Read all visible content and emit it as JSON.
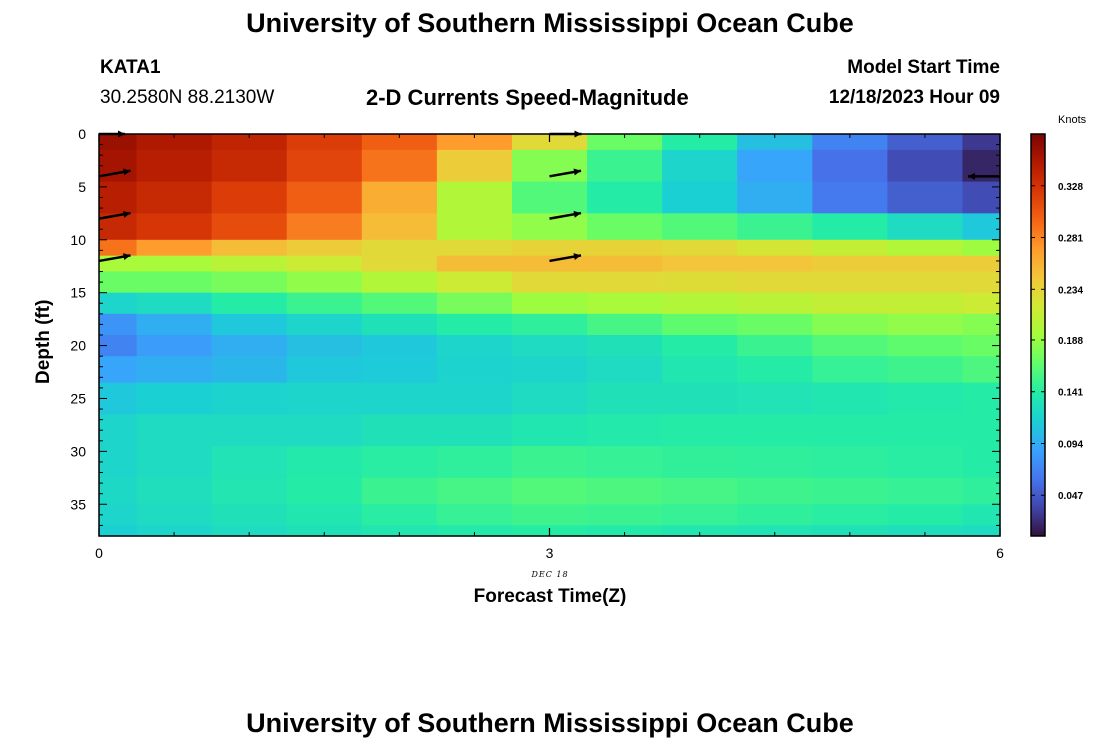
{
  "header": {
    "title": "University of Southern Mississippi Ocean Cube",
    "station": "KATA1",
    "coords": "30.2580N  88.2130W",
    "subtitle": "2-D Currents Speed-Magnitude",
    "model_start_label": "Model Start Time",
    "model_start_value": "12/18/2023 Hour 09"
  },
  "footer": {
    "title": "University of Southern Mississippi Ocean Cube"
  },
  "colors": {
    "arrow": "#000000",
    "colormap": [
      "#30123b",
      "#4145ab",
      "#4675ed",
      "#39a2fc",
      "#1bcfd4",
      "#24eca6",
      "#61fc6c",
      "#a4fc3b",
      "#d1e834",
      "#f3c63a",
      "#fe9b2d",
      "#f36315",
      "#d93806",
      "#b11901",
      "#7a0402"
    ]
  },
  "chart_data": {
    "type": "heatmap",
    "title": "2-D Currents Speed-Magnitude",
    "xlabel": "Forecast Time(Z)",
    "ylabel": "Depth (ft)",
    "date_label": "DEC 18",
    "x_ticks": [
      0,
      3,
      6
    ],
    "x_tick_labels": [
      "0",
      "3",
      "6"
    ],
    "y_ticks": [
      0,
      5,
      10,
      15,
      20,
      25,
      30,
      35
    ],
    "y_tick_labels": [
      "0",
      "5",
      "10",
      "15",
      "20",
      "25",
      "30",
      "35"
    ],
    "xlim": [
      0,
      6
    ],
    "ylim": [
      38,
      0
    ],
    "colorbar": {
      "label": "Knots",
      "range": [
        0.01,
        0.375
      ],
      "ticks": [
        0.047,
        0.094,
        0.141,
        0.188,
        0.234,
        0.281,
        0.328
      ],
      "tick_labels": [
        "0.047",
        "0.094",
        "0.141",
        "0.188",
        "0.234",
        "0.281",
        "0.328"
      ]
    },
    "time_columns_hours": [
      0,
      0.5,
      1,
      1.5,
      2,
      2.5,
      3,
      3.5,
      4,
      4.5,
      5,
      5.5,
      6
    ],
    "depth_levels_ft": [
      0,
      3,
      6,
      9,
      11,
      12,
      14,
      16,
      18,
      20,
      22,
      25,
      28,
      31,
      34,
      36,
      38
    ],
    "speed_knots": [
      [
        0.36,
        0.35,
        0.34,
        0.32,
        0.3,
        0.27,
        0.23,
        0.17,
        0.14,
        0.105,
        0.07,
        0.05,
        0.03
      ],
      [
        0.355,
        0.345,
        0.335,
        0.315,
        0.29,
        0.24,
        0.18,
        0.15,
        0.12,
        0.09,
        0.06,
        0.04,
        0.02
      ],
      [
        0.345,
        0.335,
        0.32,
        0.3,
        0.26,
        0.2,
        0.16,
        0.14,
        0.115,
        0.095,
        0.065,
        0.05,
        0.04
      ],
      [
        0.335,
        0.325,
        0.31,
        0.285,
        0.25,
        0.2,
        0.185,
        0.17,
        0.16,
        0.15,
        0.14,
        0.125,
        0.11
      ],
      [
        0.29,
        0.27,
        0.25,
        0.24,
        0.23,
        0.23,
        0.235,
        0.235,
        0.23,
        0.22,
        0.21,
        0.2,
        0.19
      ],
      [
        0.195,
        0.195,
        0.205,
        0.215,
        0.23,
        0.25,
        0.25,
        0.25,
        0.245,
        0.245,
        0.24,
        0.24,
        0.24
      ],
      [
        0.17,
        0.17,
        0.175,
        0.185,
        0.2,
        0.215,
        0.23,
        0.23,
        0.228,
        0.23,
        0.23,
        0.23,
        0.23
      ],
      [
        0.12,
        0.125,
        0.14,
        0.15,
        0.16,
        0.175,
        0.19,
        0.195,
        0.2,
        0.205,
        0.21,
        0.21,
        0.215
      ],
      [
        0.08,
        0.095,
        0.11,
        0.12,
        0.13,
        0.14,
        0.145,
        0.155,
        0.165,
        0.17,
        0.18,
        0.185,
        0.18
      ],
      [
        0.07,
        0.085,
        0.095,
        0.105,
        0.11,
        0.12,
        0.125,
        0.13,
        0.14,
        0.15,
        0.16,
        0.165,
        0.17
      ],
      [
        0.09,
        0.095,
        0.1,
        0.11,
        0.112,
        0.118,
        0.12,
        0.125,
        0.135,
        0.14,
        0.148,
        0.152,
        0.158
      ],
      [
        0.11,
        0.115,
        0.118,
        0.12,
        0.12,
        0.12,
        0.125,
        0.13,
        0.13,
        0.132,
        0.135,
        0.138,
        0.14
      ],
      [
        0.12,
        0.125,
        0.125,
        0.125,
        0.13,
        0.13,
        0.135,
        0.138,
        0.14,
        0.14,
        0.14,
        0.14,
        0.14
      ],
      [
        0.12,
        0.125,
        0.132,
        0.138,
        0.142,
        0.145,
        0.15,
        0.148,
        0.146,
        0.145,
        0.144,
        0.142,
        0.14
      ],
      [
        0.122,
        0.128,
        0.134,
        0.14,
        0.15,
        0.155,
        0.16,
        0.158,
        0.155,
        0.152,
        0.15,
        0.148,
        0.145
      ],
      [
        0.12,
        0.125,
        0.13,
        0.135,
        0.142,
        0.148,
        0.152,
        0.15,
        0.148,
        0.145,
        0.142,
        0.14,
        0.135
      ],
      [
        0.115,
        0.12,
        0.125,
        0.13,
        0.135,
        0.138,
        0.14,
        0.138,
        0.135,
        0.132,
        0.13,
        0.128,
        0.125
      ]
    ],
    "vectors": [
      {
        "t": 0,
        "depth": 0,
        "direction": "east",
        "length": "short"
      },
      {
        "t": 0,
        "depth": 4,
        "direction": "east-northeast",
        "length": "long"
      },
      {
        "t": 0,
        "depth": 8,
        "direction": "east-northeast",
        "length": "long"
      },
      {
        "t": 0,
        "depth": 12,
        "direction": "east-northeast",
        "length": "long"
      },
      {
        "t": 3,
        "depth": 0,
        "direction": "east",
        "length": "long"
      },
      {
        "t": 3,
        "depth": 4,
        "direction": "east-northeast",
        "length": "long"
      },
      {
        "t": 3,
        "depth": 8,
        "direction": "east-northeast",
        "length": "long"
      },
      {
        "t": 3,
        "depth": 12,
        "direction": "east-northeast",
        "length": "long"
      },
      {
        "t": 6,
        "depth": 4,
        "direction": "west",
        "length": "long"
      }
    ]
  }
}
